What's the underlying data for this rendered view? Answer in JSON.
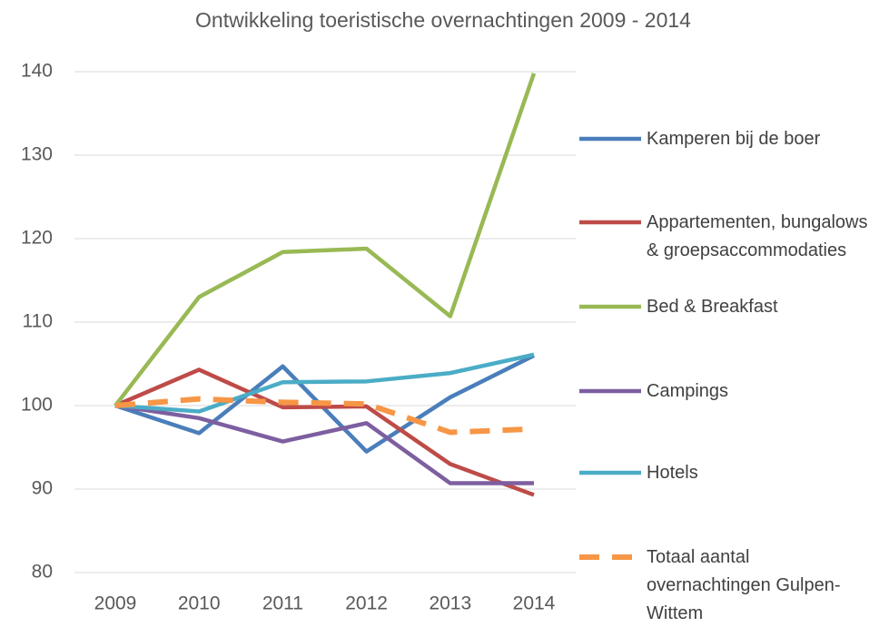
{
  "chart_data": {
    "type": "line",
    "title": "Ontwikkeling toeristische overnachtingen 2009 - 2014",
    "categories": [
      "2009",
      "2010",
      "2011",
      "2012",
      "2013",
      "2014"
    ],
    "series": [
      {
        "name": "Kamperen bij de boer",
        "color": "#4a7ebb",
        "values": [
          100,
          96.7,
          104.7,
          94.5,
          101,
          106
        ]
      },
      {
        "name": "Appartementen, bungalows & groepsaccommodaties",
        "color": "#be4b48",
        "values": [
          100,
          104.3,
          99.8,
          99.9,
          93,
          89.3
        ]
      },
      {
        "name": "Bed & Breakfast",
        "color": "#98b954",
        "values": [
          100,
          113,
          118.4,
          118.8,
          110.7,
          139.8
        ]
      },
      {
        "name": "Campings",
        "color": "#7d5fa0",
        "values": [
          100,
          98.5,
          95.7,
          97.9,
          90.7,
          90.7
        ]
      },
      {
        "name": "Hotels",
        "color": "#4bacc6",
        "values": [
          100,
          99.3,
          102.8,
          102.9,
          103.9,
          106.1
        ]
      },
      {
        "name": "Totaal aantal overnachtingen Gulpen-Wittem",
        "color": "#f79646",
        "dashed": true,
        "values": [
          100,
          100.8,
          100.4,
          100.2,
          96.8,
          97.2
        ]
      }
    ],
    "ylim": [
      80,
      140
    ],
    "yticks": [
      80,
      90,
      100,
      110,
      120,
      130,
      140
    ],
    "grid": true,
    "legend": "right"
  }
}
